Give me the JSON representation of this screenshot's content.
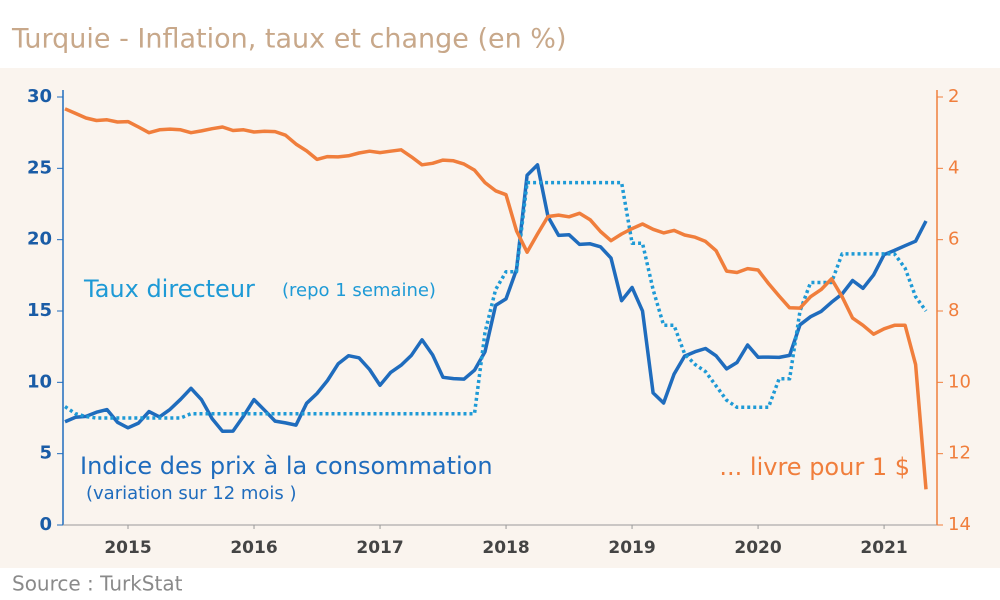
{
  "chart_data": {
    "type": "line",
    "title": "Turquie - Inflation, taux et change (en %)",
    "source": "Source : TurkStat",
    "x": [
      2015,
      2015.083,
      2015.167,
      2015.25,
      2015.333,
      2015.417,
      2015.5,
      2015.583,
      2015.667,
      2015.75,
      2015.833,
      2015.917,
      2016,
      2016.083,
      2016.167,
      2016.25,
      2016.333,
      2016.417,
      2016.5,
      2016.583,
      2016.667,
      2016.75,
      2016.833,
      2016.917,
      2017,
      2017.083,
      2017.167,
      2017.25,
      2017.333,
      2017.417,
      2017.5,
      2017.583,
      2017.667,
      2017.75,
      2017.833,
      2017.917,
      2018,
      2018.083,
      2018.167,
      2018.25,
      2018.333,
      2018.417,
      2018.5,
      2018.583,
      2018.667,
      2018.75,
      2018.833,
      2018.917,
      2019,
      2019.083,
      2019.167,
      2019.25,
      2019.333,
      2019.417,
      2019.5,
      2019.583,
      2019.667,
      2019.75,
      2019.833,
      2019.917,
      2020,
      2020.083,
      2020.167,
      2020.25,
      2020.333,
      2020.417,
      2020.5,
      2020.583,
      2020.667,
      2020.75,
      2020.833,
      2020.917,
      2021,
      2021.083,
      2021.167,
      2021.25,
      2021.333,
      2021.417,
      2021.5,
      2021.583,
      2021.667,
      2021.75,
      2021.833
    ],
    "xlim": [
      2015,
      2021.92
    ],
    "xticks": [
      {
        "value": 2015.5,
        "label": "2015"
      },
      {
        "value": 2016.5,
        "label": "2016"
      },
      {
        "value": 2017.5,
        "label": "2017"
      },
      {
        "value": 2018.5,
        "label": "2018"
      },
      {
        "value": 2019.5,
        "label": "2019"
      },
      {
        "value": 2020.5,
        "label": "2020"
      },
      {
        "value": 2021.5,
        "label": "2021"
      }
    ],
    "ylim": [
      0,
      30
    ],
    "yticks": [
      0,
      5,
      10,
      15,
      20,
      25,
      30
    ],
    "y2lim": [
      2,
      14
    ],
    "y2ticks": [
      2,
      4,
      6,
      8,
      10,
      12,
      14
    ],
    "y2_inverted": true,
    "series": [
      {
        "name": "Indice des prix à la consommation",
        "note": "(variation sur 12 mois )",
        "color": "#1f6cbd",
        "dash": false,
        "values": [
          7.24,
          7.55,
          7.61,
          7.91,
          8.09,
          7.2,
          6.81,
          7.14,
          7.95,
          7.58,
          8.1,
          8.81,
          9.58,
          8.78,
          7.46,
          6.57,
          6.58,
          7.64,
          8.79,
          8.05,
          7.28,
          7.16,
          7.0,
          8.53,
          9.22,
          10.13,
          11.29,
          11.87,
          11.72,
          10.9,
          9.79,
          10.68,
          11.2,
          11.9,
          12.98,
          11.92,
          10.35,
          10.26,
          10.23,
          10.85,
          12.15,
          15.39,
          15.85,
          17.9,
          24.52,
          25.24,
          21.62,
          20.3,
          20.35,
          19.67,
          19.71,
          19.5,
          18.71,
          15.72,
          16.65,
          15.01,
          9.26,
          8.55,
          10.56,
          11.84,
          12.15,
          12.37,
          11.86,
          10.94,
          11.39,
          12.62,
          11.76,
          11.77,
          11.75,
          11.89,
          14.03,
          14.6,
          14.97,
          15.61,
          16.19,
          17.14,
          16.59,
          17.53,
          18.95,
          19.25,
          19.58,
          19.89,
          21.31
        ]
      },
      {
        "name": "Taux directeur",
        "note": "(repo 1 semaine)",
        "color": "#1e9ad6",
        "dash": true,
        "values": [
          8.3,
          7.8,
          7.6,
          7.5,
          7.5,
          7.5,
          7.5,
          7.5,
          7.5,
          7.5,
          7.5,
          7.5,
          7.8,
          7.8,
          7.8,
          7.8,
          7.8,
          7.8,
          7.8,
          7.8,
          7.8,
          7.8,
          7.8,
          7.8,
          7.8,
          7.8,
          7.8,
          7.8,
          7.8,
          7.8,
          7.8,
          7.8,
          7.8,
          7.8,
          7.8,
          7.8,
          7.8,
          7.8,
          7.8,
          7.8,
          13.5,
          16.5,
          17.75,
          17.75,
          24,
          24,
          24,
          24,
          24,
          24,
          24,
          24,
          24,
          24,
          19.75,
          19.75,
          16.5,
          14,
          14,
          12,
          11.25,
          10.75,
          9.75,
          8.75,
          8.25,
          8.25,
          8.25,
          8.25,
          10.25,
          10.25,
          15,
          17,
          17,
          17,
          19,
          19,
          19,
          19,
          19,
          19,
          18,
          16,
          15
        ]
      },
      {
        "name": "... livre pour 1 $",
        "color": "#f07e3c",
        "dash": false,
        "axis": "y2",
        "values": [
          2.33,
          2.46,
          2.59,
          2.66,
          2.64,
          2.7,
          2.69,
          2.84,
          3.0,
          2.92,
          2.9,
          2.92,
          3.0,
          2.95,
          2.89,
          2.84,
          2.94,
          2.92,
          2.98,
          2.96,
          2.97,
          3.07,
          3.32,
          3.51,
          3.75,
          3.67,
          3.68,
          3.65,
          3.57,
          3.52,
          3.56,
          3.52,
          3.48,
          3.68,
          3.9,
          3.86,
          3.77,
          3.79,
          3.88,
          4.05,
          4.4,
          4.63,
          4.74,
          5.75,
          6.35,
          5.84,
          5.35,
          5.31,
          5.36,
          5.26,
          5.44,
          5.77,
          6.03,
          5.84,
          5.69,
          5.56,
          5.71,
          5.81,
          5.74,
          5.87,
          5.93,
          6.05,
          6.31,
          6.88,
          6.92,
          6.81,
          6.85,
          7.23,
          7.58,
          7.91,
          7.92,
          7.6,
          7.4,
          7.1,
          7.6,
          8.2,
          8.4,
          8.65,
          8.5,
          8.4,
          8.4,
          9.5,
          13.0
        ]
      }
    ]
  }
}
